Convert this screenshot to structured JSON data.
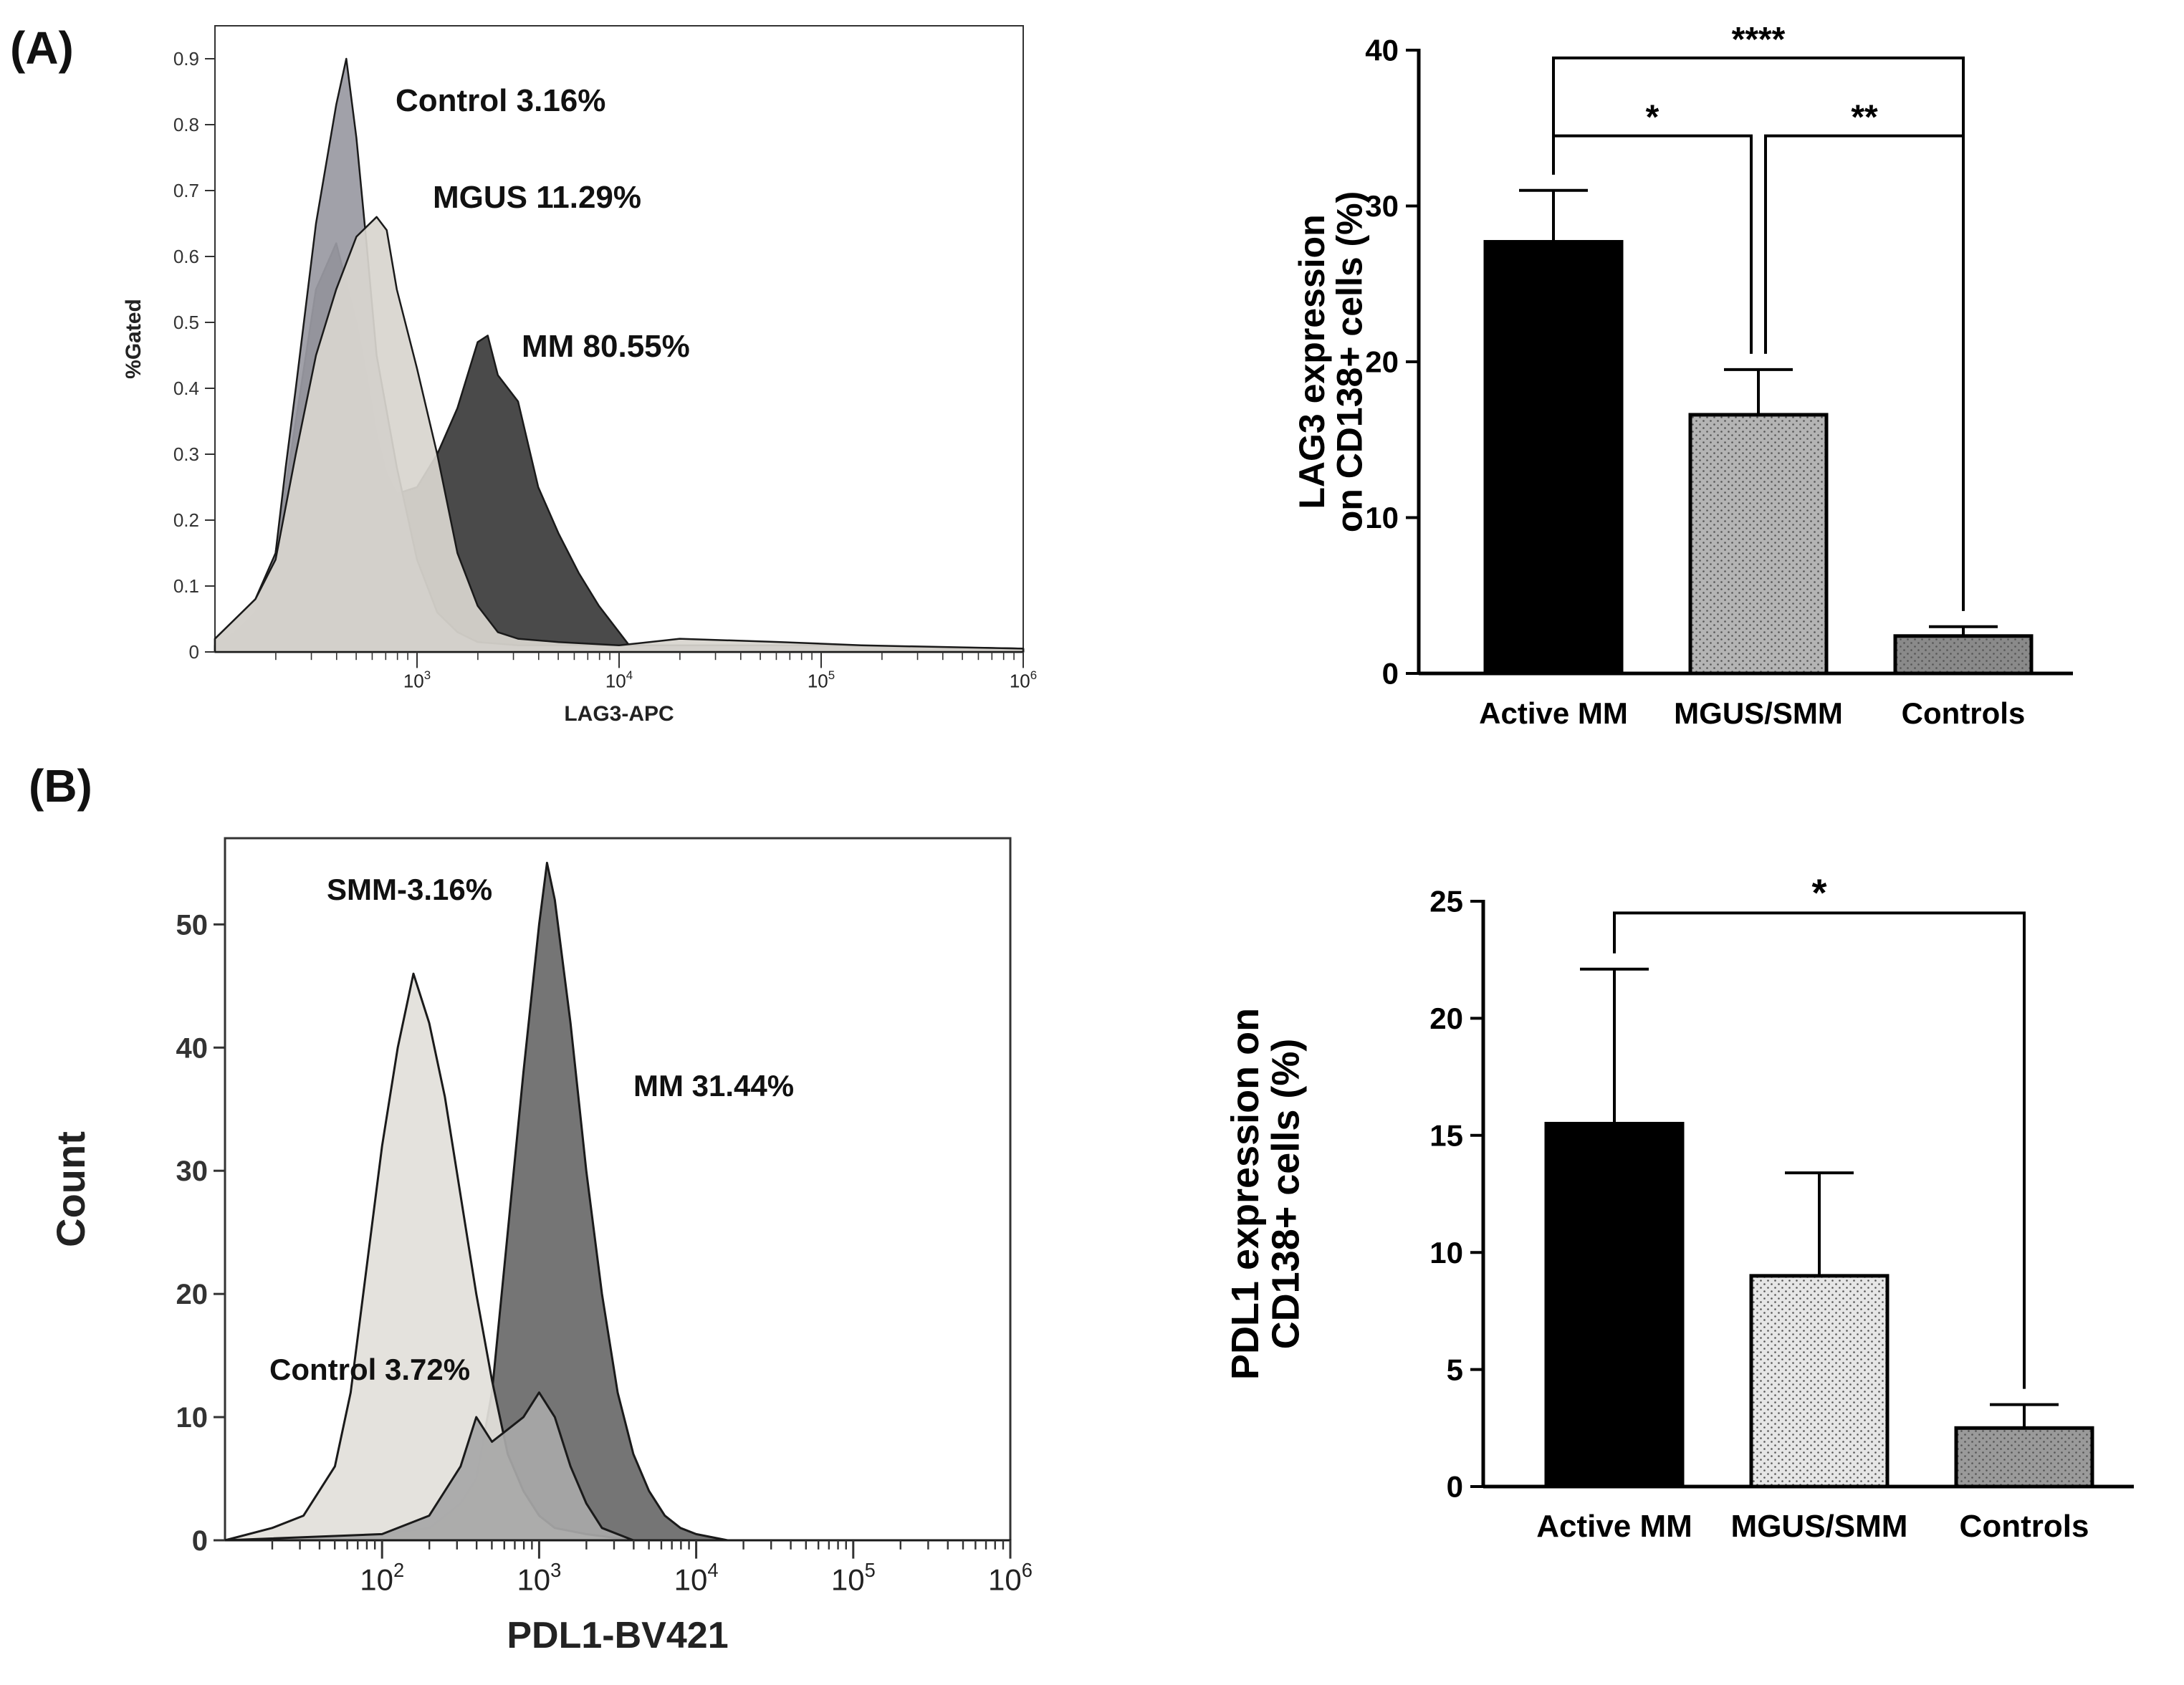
{
  "panel_labels": {
    "a": "(A)",
    "b": "(B)"
  },
  "chart_data": [
    {
      "id": "A-histogram",
      "type": "area",
      "xlabel": "LAG3-APC",
      "ylabel": "%Gated",
      "x_scale": "log10",
      "xlim_log10": [
        2.0,
        6.0
      ],
      "ylim": [
        0,
        0.95
      ],
      "y_ticks": [
        "0",
        "0.1",
        "0.2",
        "0.3",
        "0.4",
        "0.5",
        "0.6",
        "0.7",
        "0.8",
        "0.9"
      ],
      "x_ticks": [
        {
          "log": 3,
          "base": "10",
          "exp": "3"
        },
        {
          "log": 4,
          "base": "10",
          "exp": "4"
        },
        {
          "log": 5,
          "base": "10",
          "exp": "5"
        },
        {
          "log": 6,
          "base": "10",
          "exp": "6"
        }
      ],
      "series": [
        {
          "name": "MM",
          "label": "MM 80.55%",
          "fill": "#3c3c3c",
          "points": [
            [
              2.0,
              0.01
            ],
            [
              2.1,
              0.03
            ],
            [
              2.2,
              0.06
            ],
            [
              2.3,
              0.15
            ],
            [
              2.4,
              0.35
            ],
            [
              2.5,
              0.55
            ],
            [
              2.6,
              0.62
            ],
            [
              2.7,
              0.5
            ],
            [
              2.75,
              0.42
            ],
            [
              2.8,
              0.33
            ],
            [
              2.85,
              0.27
            ],
            [
              2.9,
              0.24
            ],
            [
              3.0,
              0.25
            ],
            [
              3.1,
              0.3
            ],
            [
              3.2,
              0.37
            ],
            [
              3.3,
              0.47
            ],
            [
              3.35,
              0.48
            ],
            [
              3.4,
              0.42
            ],
            [
              3.5,
              0.38
            ],
            [
              3.6,
              0.25
            ],
            [
              3.7,
              0.18
            ],
            [
              3.8,
              0.12
            ],
            [
              3.9,
              0.07
            ],
            [
              4.0,
              0.03
            ],
            [
              4.05,
              0.01
            ],
            [
              4.3,
              0.01
            ],
            [
              5.0,
              0.01
            ],
            [
              6.0,
              0.005
            ]
          ]
        },
        {
          "name": "Control",
          "label": "Control 3.16%",
          "fill": "#9a9aa2",
          "points": [
            [
              2.0,
              0.02
            ],
            [
              2.1,
              0.05
            ],
            [
              2.2,
              0.08
            ],
            [
              2.3,
              0.15
            ],
            [
              2.35,
              0.28
            ],
            [
              2.4,
              0.4
            ],
            [
              2.5,
              0.65
            ],
            [
              2.6,
              0.83
            ],
            [
              2.65,
              0.9
            ],
            [
              2.7,
              0.78
            ],
            [
              2.75,
              0.62
            ],
            [
              2.8,
              0.45
            ],
            [
              2.9,
              0.28
            ],
            [
              3.0,
              0.14
            ],
            [
              3.1,
              0.06
            ],
            [
              3.2,
              0.03
            ],
            [
              3.3,
              0.015
            ],
            [
              3.5,
              0.01
            ],
            [
              4.0,
              0.01
            ],
            [
              5.0,
              0.01
            ],
            [
              6.0,
              0.005
            ]
          ]
        },
        {
          "name": "MGUS",
          "label": "MGUS 11.29%",
          "fill": "#d8d5cf",
          "points": [
            [
              2.0,
              0.02
            ],
            [
              2.1,
              0.05
            ],
            [
              2.2,
              0.08
            ],
            [
              2.3,
              0.14
            ],
            [
              2.4,
              0.3
            ],
            [
              2.5,
              0.45
            ],
            [
              2.6,
              0.55
            ],
            [
              2.7,
              0.63
            ],
            [
              2.8,
              0.66
            ],
            [
              2.85,
              0.64
            ],
            [
              2.9,
              0.55
            ],
            [
              3.0,
              0.43
            ],
            [
              3.1,
              0.3
            ],
            [
              3.2,
              0.15
            ],
            [
              3.3,
              0.07
            ],
            [
              3.4,
              0.03
            ],
            [
              3.5,
              0.02
            ],
            [
              3.7,
              0.015
            ],
            [
              4.0,
              0.01
            ],
            [
              4.3,
              0.02
            ],
            [
              4.8,
              0.015
            ],
            [
              5.2,
              0.01
            ],
            [
              6.0,
              0.005
            ]
          ]
        }
      ]
    },
    {
      "id": "A-bar",
      "type": "bar",
      "categories": [
        "Active MM",
        "MGUS/SMM",
        "Controls"
      ],
      "values": [
        27.7,
        16.6,
        2.4
      ],
      "errors": [
        3.3,
        2.9,
        0.6
      ],
      "fills": [
        "#000000",
        "#b4b4b4",
        "#8a8a8a"
      ],
      "ylabel_lines": [
        "LAG3 expression",
        "on CD138+ cells (%)"
      ],
      "ylim": [
        0,
        40
      ],
      "y_ticks": [
        "0",
        "10",
        "20",
        "30",
        "40"
      ],
      "significance": [
        {
          "from": 0,
          "to": 2,
          "label": "****",
          "level": 39.5
        },
        {
          "from": 0,
          "to": 1,
          "label": "*",
          "level": 34.5
        },
        {
          "from": 1,
          "to": 2,
          "label": "**",
          "level": 34.5
        }
      ]
    },
    {
      "id": "B-histogram",
      "type": "area",
      "xlabel": "PDL1-BV421",
      "ylabel": "Count",
      "x_scale": "log10",
      "xlim_log10": [
        1.0,
        6.0
      ],
      "ylim": [
        0,
        57
      ],
      "y_ticks": [
        "0",
        "10",
        "20",
        "30",
        "40",
        "50"
      ],
      "x_ticks": [
        {
          "log": 2,
          "base": "10",
          "exp": "2"
        },
        {
          "log": 3,
          "base": "10",
          "exp": "3"
        },
        {
          "log": 4,
          "base": "10",
          "exp": "4"
        },
        {
          "log": 5,
          "base": "10",
          "exp": "5"
        },
        {
          "log": 6,
          "base": "10",
          "exp": "6"
        }
      ],
      "series": [
        {
          "name": "MM",
          "label": "MM 31.44%",
          "fill": "#6a6a6a",
          "points": [
            [
              1.0,
              0
            ],
            [
              2.0,
              0.5
            ],
            [
              2.3,
              1
            ],
            [
              2.5,
              3
            ],
            [
              2.6,
              5
            ],
            [
              2.7,
              12
            ],
            [
              2.8,
              25
            ],
            [
              2.9,
              38
            ],
            [
              3.0,
              50
            ],
            [
              3.05,
              55
            ],
            [
              3.1,
              52
            ],
            [
              3.2,
              42
            ],
            [
              3.3,
              30
            ],
            [
              3.4,
              20
            ],
            [
              3.5,
              12
            ],
            [
              3.6,
              7
            ],
            [
              3.7,
              4
            ],
            [
              3.8,
              2
            ],
            [
              3.9,
              1
            ],
            [
              4.0,
              0.5
            ],
            [
              4.2,
              0
            ],
            [
              6.0,
              0
            ]
          ]
        },
        {
          "name": "Control",
          "label": "Control 3.72%",
          "fill": "#e2e0da",
          "points": [
            [
              1.0,
              0
            ],
            [
              1.3,
              1
            ],
            [
              1.5,
              2
            ],
            [
              1.7,
              6
            ],
            [
              1.8,
              12
            ],
            [
              1.9,
              22
            ],
            [
              2.0,
              32
            ],
            [
              2.1,
              40
            ],
            [
              2.2,
              46
            ],
            [
              2.3,
              42
            ],
            [
              2.4,
              36
            ],
            [
              2.5,
              28
            ],
            [
              2.6,
              20
            ],
            [
              2.7,
              13
            ],
            [
              2.8,
              7
            ],
            [
              2.9,
              4
            ],
            [
              3.0,
              2
            ],
            [
              3.1,
              1
            ],
            [
              3.3,
              0.5
            ],
            [
              3.6,
              0
            ],
            [
              6.0,
              0
            ]
          ]
        },
        {
          "name": "SMM",
          "label": "SMM-3.16%",
          "fill": "#a8a8a8",
          "points": [
            [
              1.0,
              0
            ],
            [
              2.0,
              0.5
            ],
            [
              2.3,
              2
            ],
            [
              2.5,
              6
            ],
            [
              2.6,
              10
            ],
            [
              2.7,
              8
            ],
            [
              2.8,
              9
            ],
            [
              2.9,
              10
            ],
            [
              3.0,
              12
            ],
            [
              3.1,
              10
            ],
            [
              3.2,
              6
            ],
            [
              3.3,
              3
            ],
            [
              3.4,
              1
            ],
            [
              3.6,
              0
            ],
            [
              6.0,
              0
            ]
          ]
        }
      ]
    },
    {
      "id": "B-bar",
      "type": "bar",
      "categories": [
        "Active MM",
        "MGUS/SMM",
        "Controls"
      ],
      "values": [
        15.5,
        9.0,
        2.5
      ],
      "errors": [
        6.6,
        4.4,
        1.0
      ],
      "fills": [
        "#000000",
        "#e6e6e6",
        "#9a9a9a"
      ],
      "ylabel_lines": [
        "PDL1 expression on",
        "CD138+ cells (%)"
      ],
      "ylim": [
        0,
        25
      ],
      "y_ticks": [
        "0",
        "5",
        "10",
        "15",
        "20",
        "25"
      ],
      "significance": [
        {
          "from": 0,
          "to": 2,
          "label": "*",
          "level": 24.5
        }
      ]
    }
  ]
}
